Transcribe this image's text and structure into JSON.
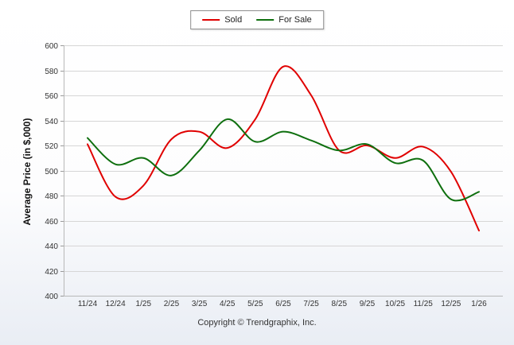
{
  "legend": {
    "items": [
      {
        "label": "Sold"
      },
      {
        "label": "For Sale"
      }
    ]
  },
  "ylabel": "Average Price (in $,000)",
  "footer": "Copyright © Trendgraphix, Inc.",
  "chart_data": {
    "type": "line",
    "categories": [
      "11/24",
      "12/24",
      "1/25",
      "2/25",
      "3/25",
      "4/25",
      "5/25",
      "6/25",
      "7/25",
      "8/25",
      "9/25",
      "10/25",
      "11/25",
      "12/25",
      "1/26"
    ],
    "series": [
      {
        "name": "Sold",
        "color": "#e00000",
        "values": [
          521,
          479,
          488,
          525,
          531,
          518,
          541,
          583,
          560,
          516,
          520,
          510,
          519,
          499,
          452
        ]
      },
      {
        "name": "For Sale",
        "color": "#0e6f0e",
        "values": [
          526,
          505,
          510,
          496,
          516,
          541,
          523,
          531,
          524,
          516,
          521,
          506,
          508,
          477,
          483
        ]
      }
    ],
    "title": "",
    "xlabel": "",
    "ylabel": "Average Price (in $,000)",
    "ylim": [
      400,
      600
    ],
    "ytick_step": 20,
    "grid": true,
    "grid_color": "#d6d6d6",
    "axis_color": "#b8b8b8",
    "legend_position": "top-center"
  }
}
